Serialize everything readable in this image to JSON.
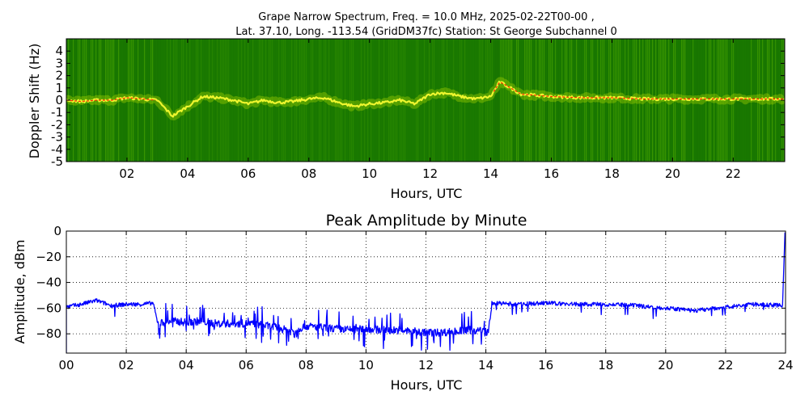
{
  "header": {
    "line1": "Grape Narrow Spectrum, Freq. = 10.0 MHz, 2025-02-22T00-00 ,",
    "line2": "Lat.  37.10, Long. -113.54 (GridDM37fc) Station: St George Subchannel 0"
  },
  "chart_data": [
    {
      "type": "heatmap",
      "title": "",
      "xlabel": "Hours, UTC",
      "ylabel": "Doppler Shift (Hz)",
      "xlim": [
        0,
        23.7
      ],
      "ylim": [
        -5,
        5
      ],
      "x_ticks": [
        2,
        4,
        6,
        8,
        10,
        12,
        14,
        16,
        18,
        20,
        22
      ],
      "x_tick_labels": [
        "02",
        "04",
        "06",
        "08",
        "10",
        "12",
        "14",
        "16",
        "18",
        "20",
        "22"
      ],
      "y_ticks": [
        4,
        3,
        2,
        1,
        0,
        -1,
        -2,
        -3,
        -4,
        -5
      ],
      "y_tick_labels": [
        "4",
        "3",
        "2",
        "1",
        "0",
        "-1",
        "-2",
        "-3",
        "-4",
        "-5"
      ],
      "background_color": "#1a7a00",
      "trace_color": "#ffff33",
      "peak_color": "#ff2a00",
      "trace": {
        "hours": [
          0,
          0.5,
          1,
          1.5,
          2,
          2.5,
          3,
          3.5,
          4,
          4.5,
          5,
          5.5,
          6,
          6.5,
          7,
          7.5,
          8,
          8.5,
          9,
          9.5,
          10,
          10.5,
          11,
          11.5,
          12,
          12.5,
          13,
          13.5,
          14,
          14.3,
          15,
          16,
          17,
          18,
          19,
          20,
          21,
          22,
          23,
          23.7
        ],
        "doppler_hz": [
          0,
          -0.1,
          0,
          0,
          0.2,
          0.1,
          0,
          -1.3,
          -0.5,
          0.3,
          0.2,
          0,
          -0.3,
          0,
          -0.2,
          -0.1,
          0.1,
          0.2,
          -0.2,
          -0.5,
          -0.3,
          -0.2,
          0,
          -0.3,
          0.5,
          0.6,
          0.3,
          0.1,
          0.3,
          1.5,
          0.5,
          0.3,
          0.2,
          0.2,
          0.1,
          0.1,
          0.1,
          0.1,
          0.1,
          0.1
        ]
      },
      "peak_segments": [
        [
          0,
          3
        ],
        [
          14.1,
          23.7
        ]
      ]
    },
    {
      "type": "line",
      "title": "Peak Amplitude by Minute",
      "xlabel": "Hours, UTC",
      "ylabel": "Amplitude, dBm",
      "xlim": [
        0,
        24
      ],
      "ylim": [
        -95,
        0
      ],
      "grid": true,
      "x_ticks": [
        0,
        2,
        4,
        6,
        8,
        10,
        12,
        14,
        16,
        18,
        20,
        22,
        24
      ],
      "x_tick_labels": [
        "00",
        "02",
        "04",
        "06",
        "08",
        "10",
        "12",
        "14",
        "16",
        "18",
        "20",
        "22",
        "24"
      ],
      "y_ticks": [
        0,
        -20,
        -40,
        -60,
        -80
      ],
      "y_tick_labels": [
        "0",
        "−20",
        "−40",
        "−60",
        "−80"
      ],
      "line_color": "#0000ff",
      "series": [
        {
          "x": [
            0,
            0.5,
            1,
            1.5,
            2,
            2.5,
            2.9,
            3.05,
            3.5,
            4,
            4.5,
            5,
            5.5,
            6,
            6.5,
            7,
            7.5,
            8,
            8.5,
            9,
            9.5,
            10,
            10.5,
            11,
            11.5,
            12,
            12.5,
            13,
            13.5,
            14,
            14.1,
            14.2,
            15,
            16,
            17,
            18,
            19,
            20,
            21,
            22,
            23,
            23.9
          ],
          "y": [
            -59,
            -57,
            -54,
            -58,
            -57,
            -57,
            -56,
            -72,
            -70,
            -71,
            -70,
            -72,
            -72,
            -72,
            -73,
            -75,
            -78,
            -74,
            -75,
            -76,
            -77,
            -76,
            -77,
            -77,
            -78,
            -79,
            -79,
            -78,
            -77,
            -78,
            -80,
            -56,
            -57,
            -56,
            -57,
            -57,
            -58,
            -60,
            -62,
            -59,
            -57,
            -58
          ]
        }
      ]
    }
  ]
}
